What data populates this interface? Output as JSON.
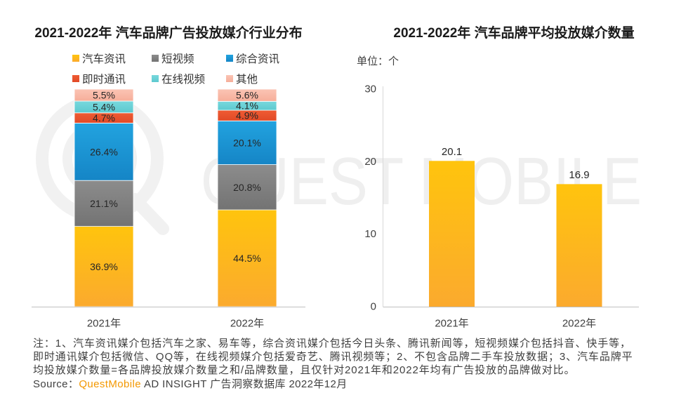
{
  "chart_data": [
    {
      "type": "bar",
      "stacked": true,
      "title": "2021-2022年 汽车品牌广告投放媒介行业分布",
      "categories": [
        "2021年",
        "2022年"
      ],
      "value_suffix": "%",
      "ylim": [
        0,
        100
      ],
      "grid": false,
      "legend": "top",
      "series": [
        {
          "name": "汽车资讯",
          "values": [
            36.9,
            44.5
          ],
          "gradient": [
            "#FFC40D",
            "#FBAA2E"
          ]
        },
        {
          "name": "短视频",
          "values": [
            21.1,
            20.8
          ],
          "gradient": [
            "#8C8C8C",
            "#737373"
          ]
        },
        {
          "name": "综合资讯",
          "values": [
            26.4,
            20.1
          ],
          "gradient": [
            "#22A3DF",
            "#1585C6"
          ]
        },
        {
          "name": "即时通讯",
          "values": [
            4.7,
            4.9
          ],
          "gradient": [
            "#EF5B33",
            "#E14A27"
          ]
        },
        {
          "name": "在线视频",
          "values": [
            5.4,
            4.1
          ],
          "gradient": [
            "#78D8DD",
            "#5DC9CF"
          ]
        },
        {
          "name": "其他",
          "values": [
            5.5,
            5.6
          ],
          "gradient": [
            "#FBC4B4",
            "#F6AE9A"
          ]
        }
      ]
    },
    {
      "type": "bar",
      "title": "2021-2022年 汽车品牌平均投放媒介数量",
      "unit_label": "单位：个",
      "categories": [
        "2021年",
        "2022年"
      ],
      "values": [
        20.1,
        16.9
      ],
      "ylim": [
        0,
        30
      ],
      "yticks": [
        0,
        10,
        20,
        30
      ],
      "grid": false,
      "gradient": [
        "#FFC40D",
        "#FBAA2E"
      ]
    }
  ],
  "footer": {
    "note_lines": [
      "注：1、汽车资讯媒介包括汽车之家、易车等，综合资讯媒介包括今日头条、腾讯新闻等，短视频媒介包括抖音、快手等，",
      "即时通讯媒介包括微信、QQ等，在线视频媒介包括爱奇艺、腾讯视频等；2、不包含品牌二手车投放数据；3、汽车品牌平",
      "均投放媒介数量=各品牌投放媒介数量之和/品牌数量，且仅针对2021年和2022年均有广告投放的品牌做对比。"
    ],
    "source_label": "Source：",
    "source_brand": "QuestMobile",
    "source_text": "AD INSIGHT 广告洞察数据库 2022年12月"
  },
  "watermark": "QUEST MOBILE",
  "colors": {
    "brand": "#F39800"
  }
}
